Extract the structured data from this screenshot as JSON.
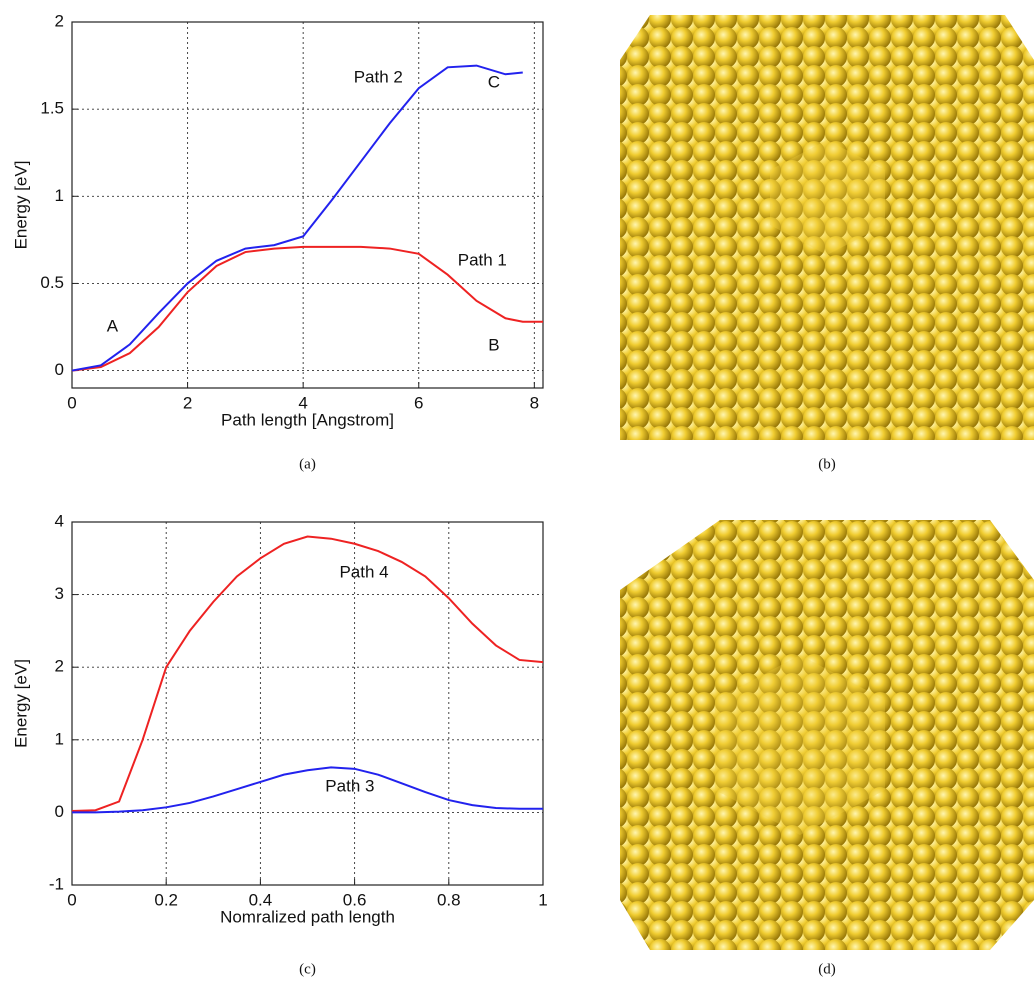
{
  "chart_data": [
    {
      "type": "line",
      "caption": "(a)",
      "xlabel": "Path length [Angstrom]",
      "ylabel": "Energy [eV]",
      "x": [
        0,
        0.5,
        1,
        1.5,
        2,
        2.5,
        3,
        3.5,
        4,
        4.5,
        5,
        5.5,
        6,
        6.5,
        7,
        7.5,
        7.8,
        8,
        8.15
      ],
      "series": [
        {
          "color": "#ee2222",
          "values": [
            0,
            0.02,
            0.1,
            0.25,
            0.45,
            0.6,
            0.68,
            0.7,
            0.71,
            0.71,
            0.71,
            0.7,
            0.67,
            0.55,
            0.4,
            0.3,
            0.28,
            0.28,
            0.28
          ]
        },
        {
          "color": "#2222ee",
          "values": [
            0,
            0.03,
            0.15,
            0.33,
            0.5,
            0.63,
            0.7,
            0.72,
            0.77,
            0.98,
            1.2,
            1.42,
            1.62,
            1.74,
            1.75,
            1.7,
            1.71,
            null,
            null
          ]
        }
      ],
      "xlim": [
        0,
        8.15
      ],
      "ylim": [
        -0.1,
        2
      ],
      "xticks": [
        0,
        2,
        4,
        6,
        8
      ],
      "yticks": [
        0,
        0.5,
        1,
        1.5,
        2
      ],
      "grid": true,
      "annotations": [
        {
          "text": "Path 2",
          "x": 5.3,
          "y": 1.68
        },
        {
          "text": "C",
          "x": 7.3,
          "y": 1.65
        },
        {
          "text": "Path 1",
          "x": 7.1,
          "y": 0.63
        },
        {
          "text": "A",
          "x": 0.7,
          "y": 0.25
        },
        {
          "text": "B",
          "x": 7.3,
          "y": 0.14
        }
      ]
    },
    {
      "type": "line",
      "caption": "(c)",
      "xlabel": "Nomralized path length",
      "ylabel": "Energy [eV]",
      "x": [
        0,
        0.05,
        0.1,
        0.15,
        0.2,
        0.25,
        0.3,
        0.35,
        0.4,
        0.45,
        0.5,
        0.55,
        0.6,
        0.65,
        0.7,
        0.75,
        0.8,
        0.85,
        0.9,
        0.95,
        1
      ],
      "series": [
        {
          "color": "#ee2222",
          "values": [
            0.02,
            0.03,
            0.15,
            1.0,
            2.0,
            2.5,
            2.9,
            3.25,
            3.5,
            3.7,
            3.8,
            3.77,
            3.7,
            3.6,
            3.45,
            3.25,
            2.95,
            2.6,
            2.3,
            2.1,
            2.07
          ]
        },
        {
          "color": "#2222ee",
          "values": [
            0,
            0,
            0.01,
            0.03,
            0.07,
            0.13,
            0.22,
            0.32,
            0.42,
            0.52,
            0.58,
            0.62,
            0.6,
            0.52,
            0.4,
            0.28,
            0.17,
            0.1,
            0.06,
            0.05,
            0.05
          ]
        }
      ],
      "xlim": [
        0,
        1
      ],
      "ylim": [
        -1,
        4
      ],
      "xticks": [
        0,
        0.2,
        0.4,
        0.6,
        0.8,
        1
      ],
      "yticks": [
        -1,
        0,
        1,
        2,
        3,
        4
      ],
      "grid": true,
      "annotations": [
        {
          "text": "Path 4",
          "x": 0.62,
          "y": 3.3
        },
        {
          "text": "Path 3",
          "x": 0.59,
          "y": 0.35
        }
      ]
    }
  ],
  "images": [
    {
      "caption": "(b)"
    },
    {
      "caption": "(d)"
    }
  ]
}
